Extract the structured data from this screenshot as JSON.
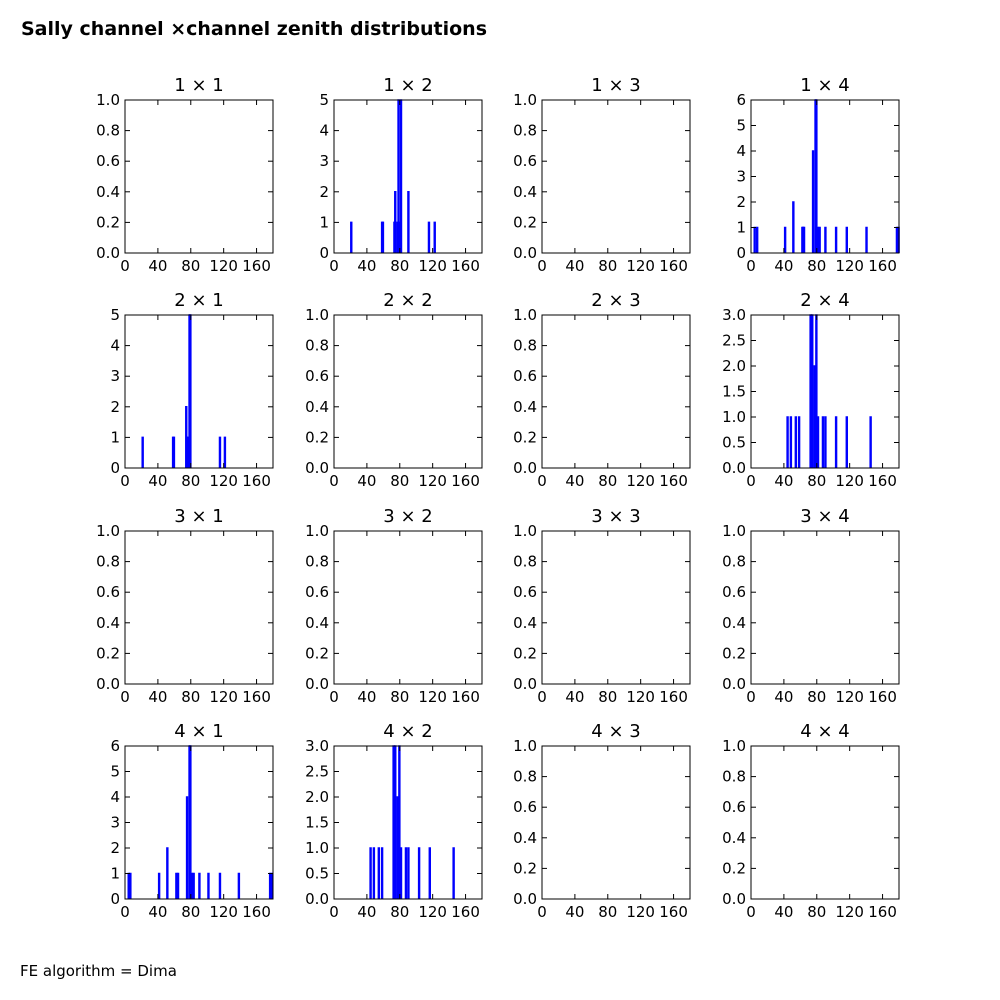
{
  "figure": {
    "title": "Sally channel ×channel zenith distributions",
    "footer": "FE algorithm = Dima",
    "line_color": "#0000ff"
  },
  "chart_data": [
    {
      "type": "bar",
      "title": "1 × 1",
      "x_ticks": [
        "0",
        "40",
        "80",
        "120",
        "160"
      ],
      "xlim": [
        0,
        180
      ],
      "y_ticks": [
        "0.0",
        "0.2",
        "0.4",
        "0.6",
        "0.8",
        "1.0"
      ],
      "ylim": [
        0,
        1
      ],
      "bins": []
    },
    {
      "type": "bar",
      "title": "1 × 2",
      "x_ticks": [
        "0",
        "40",
        "80",
        "120",
        "160"
      ],
      "xlim": [
        0,
        180
      ],
      "y_ticks": [
        "0",
        "1",
        "2",
        "3",
        "4",
        "5"
      ],
      "ylim": [
        0,
        5
      ],
      "bins": [
        [
          20.5,
          1
        ],
        [
          58,
          1
        ],
        [
          59,
          1
        ],
        [
          73,
          1
        ],
        [
          74,
          2
        ],
        [
          77,
          1
        ],
        [
          78,
          5
        ],
        [
          79,
          1
        ],
        [
          81,
          5
        ],
        [
          90,
          2
        ],
        [
          115,
          1
        ],
        [
          122,
          1
        ]
      ]
    },
    {
      "type": "bar",
      "title": "1 × 3",
      "x_ticks": [
        "0",
        "40",
        "80",
        "120",
        "160"
      ],
      "xlim": [
        0,
        180
      ],
      "y_ticks": [
        "0.0",
        "0.2",
        "0.4",
        "0.6",
        "0.8",
        "1.0"
      ],
      "ylim": [
        0,
        1
      ],
      "bins": []
    },
    {
      "type": "bar",
      "title": "1 × 4",
      "x_ticks": [
        "0",
        "40",
        "80",
        "120",
        "160"
      ],
      "xlim": [
        0,
        180
      ],
      "y_ticks": [
        "0",
        "1",
        "2",
        "3",
        "4",
        "5",
        "6"
      ],
      "ylim": [
        0,
        6
      ],
      "bins": [
        [
          4,
          1
        ],
        [
          7,
          1
        ],
        [
          41,
          1
        ],
        [
          51,
          2
        ],
        [
          62,
          1
        ],
        [
          63,
          1
        ],
        [
          64,
          1
        ],
        [
          75,
          4
        ],
        [
          78,
          6
        ],
        [
          79,
          6
        ],
        [
          81,
          1
        ],
        [
          83,
          1
        ],
        [
          90,
          1
        ],
        [
          103,
          1
        ],
        [
          116,
          1
        ],
        [
          140,
          1
        ],
        [
          177,
          1
        ],
        [
          179,
          1
        ]
      ]
    },
    {
      "type": "bar",
      "title": "2 × 1",
      "x_ticks": [
        "0",
        "40",
        "80",
        "120",
        "160"
      ],
      "xlim": [
        0,
        180
      ],
      "y_ticks": [
        "0",
        "1",
        "2",
        "3",
        "4",
        "5"
      ],
      "ylim": [
        0,
        5
      ],
      "bins": [
        [
          21,
          1
        ],
        [
          58,
          1
        ],
        [
          59,
          1
        ],
        [
          74,
          2
        ],
        [
          75,
          1
        ],
        [
          77,
          1
        ],
        [
          78,
          5
        ],
        [
          79,
          5
        ],
        [
          115,
          1
        ],
        [
          121,
          1
        ]
      ]
    },
    {
      "type": "bar",
      "title": "2 × 2",
      "x_ticks": [
        "0",
        "40",
        "80",
        "120",
        "160"
      ],
      "xlim": [
        0,
        180
      ],
      "y_ticks": [
        "0.0",
        "0.2",
        "0.4",
        "0.6",
        "0.8",
        "1.0"
      ],
      "ylim": [
        0,
        1
      ],
      "bins": []
    },
    {
      "type": "bar",
      "title": "2 × 3",
      "x_ticks": [
        "0",
        "40",
        "80",
        "120",
        "160"
      ],
      "xlim": [
        0,
        180
      ],
      "y_ticks": [
        "0.0",
        "0.2",
        "0.4",
        "0.6",
        "0.8",
        "1.0"
      ],
      "ylim": [
        0,
        1
      ],
      "bins": []
    },
    {
      "type": "bar",
      "title": "2 × 4",
      "x_ticks": [
        "0",
        "40",
        "80",
        "120",
        "160"
      ],
      "xlim": [
        0,
        180
      ],
      "y_ticks": [
        "0.0",
        "0.5",
        "1.0",
        "1.5",
        "2.0",
        "2.5",
        "3.0"
      ],
      "ylim": [
        0,
        3
      ],
      "bins": [
        [
          44,
          1
        ],
        [
          48,
          1
        ],
        [
          54,
          1
        ],
        [
          58,
          1
        ],
        [
          72,
          3
        ],
        [
          74,
          3
        ],
        [
          77,
          2
        ],
        [
          78,
          1
        ],
        [
          79,
          3
        ],
        [
          81,
          1
        ],
        [
          87,
          1
        ],
        [
          90,
          1
        ],
        [
          103,
          1
        ],
        [
          116,
          1
        ],
        [
          145,
          1
        ]
      ]
    },
    {
      "type": "bar",
      "title": "3 × 1",
      "x_ticks": [
        "0",
        "40",
        "80",
        "120",
        "160"
      ],
      "xlim": [
        0,
        180
      ],
      "y_ticks": [
        "0.0",
        "0.2",
        "0.4",
        "0.6",
        "0.8",
        "1.0"
      ],
      "ylim": [
        0,
        1
      ],
      "bins": []
    },
    {
      "type": "bar",
      "title": "3 × 2",
      "x_ticks": [
        "0",
        "40",
        "80",
        "120",
        "160"
      ],
      "xlim": [
        0,
        180
      ],
      "y_ticks": [
        "0.0",
        "0.2",
        "0.4",
        "0.6",
        "0.8",
        "1.0"
      ],
      "ylim": [
        0,
        1
      ],
      "bins": []
    },
    {
      "type": "bar",
      "title": "3 × 3",
      "x_ticks": [
        "0",
        "40",
        "80",
        "120",
        "160"
      ],
      "xlim": [
        0,
        180
      ],
      "y_ticks": [
        "0.0",
        "0.2",
        "0.4",
        "0.6",
        "0.8",
        "1.0"
      ],
      "ylim": [
        0,
        1
      ],
      "bins": []
    },
    {
      "type": "bar",
      "title": "3 × 4",
      "x_ticks": [
        "0",
        "40",
        "80",
        "120",
        "160"
      ],
      "xlim": [
        0,
        180
      ],
      "y_ticks": [
        "0.0",
        "0.2",
        "0.4",
        "0.6",
        "0.8",
        "1.0"
      ],
      "ylim": [
        0,
        1
      ],
      "bins": []
    },
    {
      "type": "bar",
      "title": "4 × 1",
      "x_ticks": [
        "0",
        "40",
        "80",
        "120",
        "160"
      ],
      "xlim": [
        0,
        180
      ],
      "y_ticks": [
        "0",
        "1",
        "2",
        "3",
        "4",
        "5",
        "6"
      ],
      "ylim": [
        0,
        6
      ],
      "bins": [
        [
          4,
          1
        ],
        [
          6,
          1
        ],
        [
          41,
          1
        ],
        [
          51,
          2
        ],
        [
          62,
          1
        ],
        [
          64,
          1
        ],
        [
          75,
          4
        ],
        [
          78,
          6
        ],
        [
          79,
          6
        ],
        [
          81,
          1
        ],
        [
          83,
          1
        ],
        [
          90,
          1
        ],
        [
          101,
          1
        ],
        [
          115,
          1
        ],
        [
          138,
          1
        ],
        [
          176,
          1
        ],
        [
          178,
          1
        ]
      ]
    },
    {
      "type": "bar",
      "title": "4 × 2",
      "x_ticks": [
        "0",
        "40",
        "80",
        "120",
        "160"
      ],
      "xlim": [
        0,
        180
      ],
      "y_ticks": [
        "0.0",
        "0.5",
        "1.0",
        "1.5",
        "2.0",
        "2.5",
        "3.0"
      ],
      "ylim": [
        0,
        3
      ],
      "bins": [
        [
          44,
          1
        ],
        [
          48,
          1
        ],
        [
          54,
          1
        ],
        [
          58,
          1
        ],
        [
          72,
          3
        ],
        [
          74,
          3
        ],
        [
          77,
          2
        ],
        [
          78,
          1
        ],
        [
          79,
          3
        ],
        [
          81,
          1
        ],
        [
          87,
          1
        ],
        [
          90,
          1
        ],
        [
          103,
          1
        ],
        [
          116,
          1
        ],
        [
          145,
          1
        ]
      ]
    },
    {
      "type": "bar",
      "title": "4 × 3",
      "x_ticks": [
        "0",
        "40",
        "80",
        "120",
        "160"
      ],
      "xlim": [
        0,
        180
      ],
      "y_ticks": [
        "0.0",
        "0.2",
        "0.4",
        "0.6",
        "0.8",
        "1.0"
      ],
      "ylim": [
        0,
        1
      ],
      "bins": []
    },
    {
      "type": "bar",
      "title": "4 × 4",
      "x_ticks": [
        "0",
        "40",
        "80",
        "120",
        "160"
      ],
      "xlim": [
        0,
        180
      ],
      "y_ticks": [
        "0.0",
        "0.2",
        "0.4",
        "0.6",
        "0.8",
        "1.0"
      ],
      "ylim": [
        0,
        1
      ],
      "bins": []
    }
  ]
}
